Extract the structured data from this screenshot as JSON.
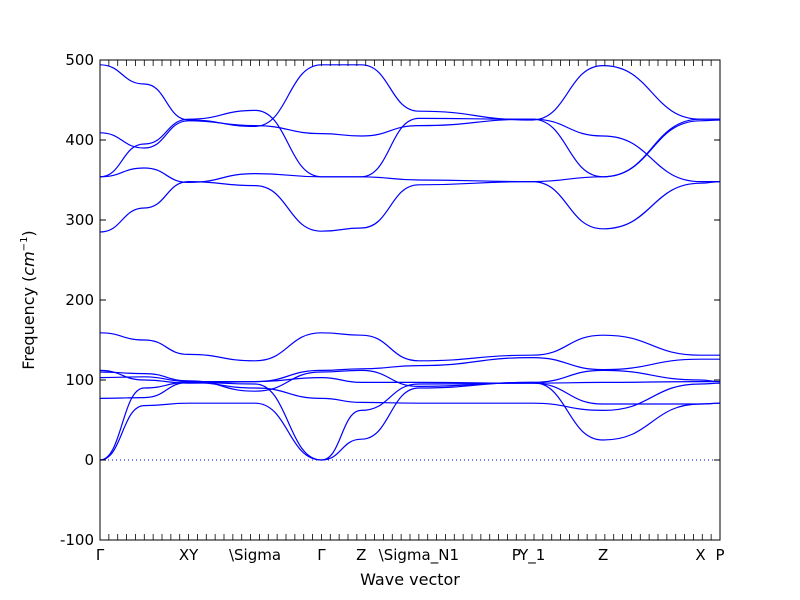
{
  "chart_data": {
    "type": "line",
    "xlabel": "Wave vector",
    "ylabel": "Frequency (",
    "ylabel_unit_base": "cm",
    "ylabel_unit_exp": "−1",
    "ylabel_close": ")",
    "ylim": [
      -100,
      500
    ],
    "yticks": [
      -100,
      0,
      100,
      200,
      300,
      400,
      500
    ],
    "xlim": [
      0,
      7.0
    ],
    "xticks": [
      {
        "pos": 0.0,
        "label": "Γ"
      },
      {
        "pos": 1.0,
        "label": "XY"
      },
      {
        "pos": 1.75,
        "label": "\\Sigma"
      },
      {
        "pos": 2.5,
        "label": "Γ"
      },
      {
        "pos": 2.95,
        "label": "Z"
      },
      {
        "pos": 3.6,
        "label": "\\Sigma_N1"
      },
      {
        "pos": 4.7,
        "label": "P"
      },
      {
        "pos": 4.88,
        "label": "Y_1"
      },
      {
        "pos": 5.68,
        "label": "Z"
      },
      {
        "pos": 6.78,
        "label": "X"
      },
      {
        "pos": 7.0,
        "label": "P"
      }
    ],
    "zero_line": true,
    "line_color": "#0000ff",
    "series": [
      {
        "x": [
          0,
          0.5,
          1.0,
          1.75,
          2.5,
          2.95,
          3.6,
          4.88,
          5.68,
          6.78,
          7.0
        ],
        "y": [
          0,
          68,
          71,
          71,
          0,
          26,
          90,
          97,
          25,
          70,
          71
        ]
      },
      {
        "x": [
          0,
          0.5,
          1.0,
          1.75,
          2.5,
          2.95,
          3.6,
          4.88,
          5.68,
          6.78,
          7.0
        ],
        "y": [
          0,
          90,
          97,
          95,
          0,
          62,
          95,
          96,
          70,
          70,
          71
        ]
      },
      {
        "x": [
          0,
          0.5,
          1.0,
          1.75,
          2.5,
          2.95,
          3.6,
          4.88,
          5.68,
          6.78,
          7.0
        ],
        "y": [
          77,
          78,
          97,
          90,
          77,
          72,
          71,
          71,
          62,
          95,
          96
        ]
      },
      {
        "x": [
          0,
          0.5,
          1.0,
          1.75,
          2.5,
          2.95,
          3.6,
          4.88,
          5.68,
          6.78,
          7.0
        ],
        "y": [
          103,
          104,
          98,
          98,
          103,
          97,
          97,
          96,
          97,
          98,
          98
        ]
      },
      {
        "x": [
          0,
          0.5,
          1.0,
          1.75,
          2.5,
          2.95,
          3.6,
          4.88,
          5.68,
          6.78,
          7.0
        ],
        "y": [
          110,
          108,
          99,
          86,
          110,
          112,
          92,
          97,
          112,
          100,
          98
        ]
      },
      {
        "x": [
          0,
          0.5,
          1.0,
          1.75,
          2.5,
          2.95,
          3.6,
          4.88,
          5.68,
          6.78,
          7.0
        ],
        "y": [
          112,
          100,
          96,
          98,
          112,
          114,
          118,
          128,
          113,
          126,
          126
        ]
      },
      {
        "x": [
          0,
          0.5,
          1.0,
          1.75,
          2.5,
          2.95,
          3.6,
          4.88,
          5.68,
          6.78,
          7.0
        ],
        "y": [
          159,
          150,
          132,
          124,
          159,
          156,
          124,
          131,
          156,
          131,
          131
        ]
      },
      {
        "x": [
          0,
          0.5,
          1.0,
          1.75,
          2.5,
          2.95,
          3.6,
          4.88,
          5.68,
          6.78,
          7.0
        ],
        "y": [
          285,
          315,
          348,
          343,
          286,
          290,
          344,
          348,
          289,
          346,
          348
        ]
      },
      {
        "x": [
          0,
          0.5,
          1.0,
          1.75,
          2.5,
          2.95,
          3.6,
          4.88,
          5.68,
          6.78,
          7.0
        ],
        "y": [
          354,
          365,
          347,
          358,
          354,
          354,
          350,
          348,
          354,
          424,
          425
        ]
      },
      {
        "x": [
          0,
          0.5,
          1.0,
          1.75,
          2.5,
          2.95,
          3.6,
          4.88,
          5.68,
          6.78,
          7.0
        ],
        "y": [
          409,
          390,
          424,
          418,
          408,
          405,
          418,
          426,
          405,
          348,
          348
        ]
      },
      {
        "x": [
          0,
          0.5,
          1.0,
          1.75,
          2.5,
          2.95,
          3.6,
          4.88,
          5.68,
          6.78,
          7.0
        ],
        "y": [
          354,
          395,
          426,
          437,
          354,
          354,
          427,
          426,
          354,
          426,
          426
        ]
      },
      {
        "x": [
          0,
          0.5,
          1.0,
          1.75,
          2.5,
          2.95,
          3.6,
          4.88,
          5.68,
          6.78,
          7.0
        ],
        "y": [
          494,
          470,
          425,
          417,
          494,
          494,
          436,
          425,
          493,
          426,
          426
        ]
      }
    ]
  }
}
